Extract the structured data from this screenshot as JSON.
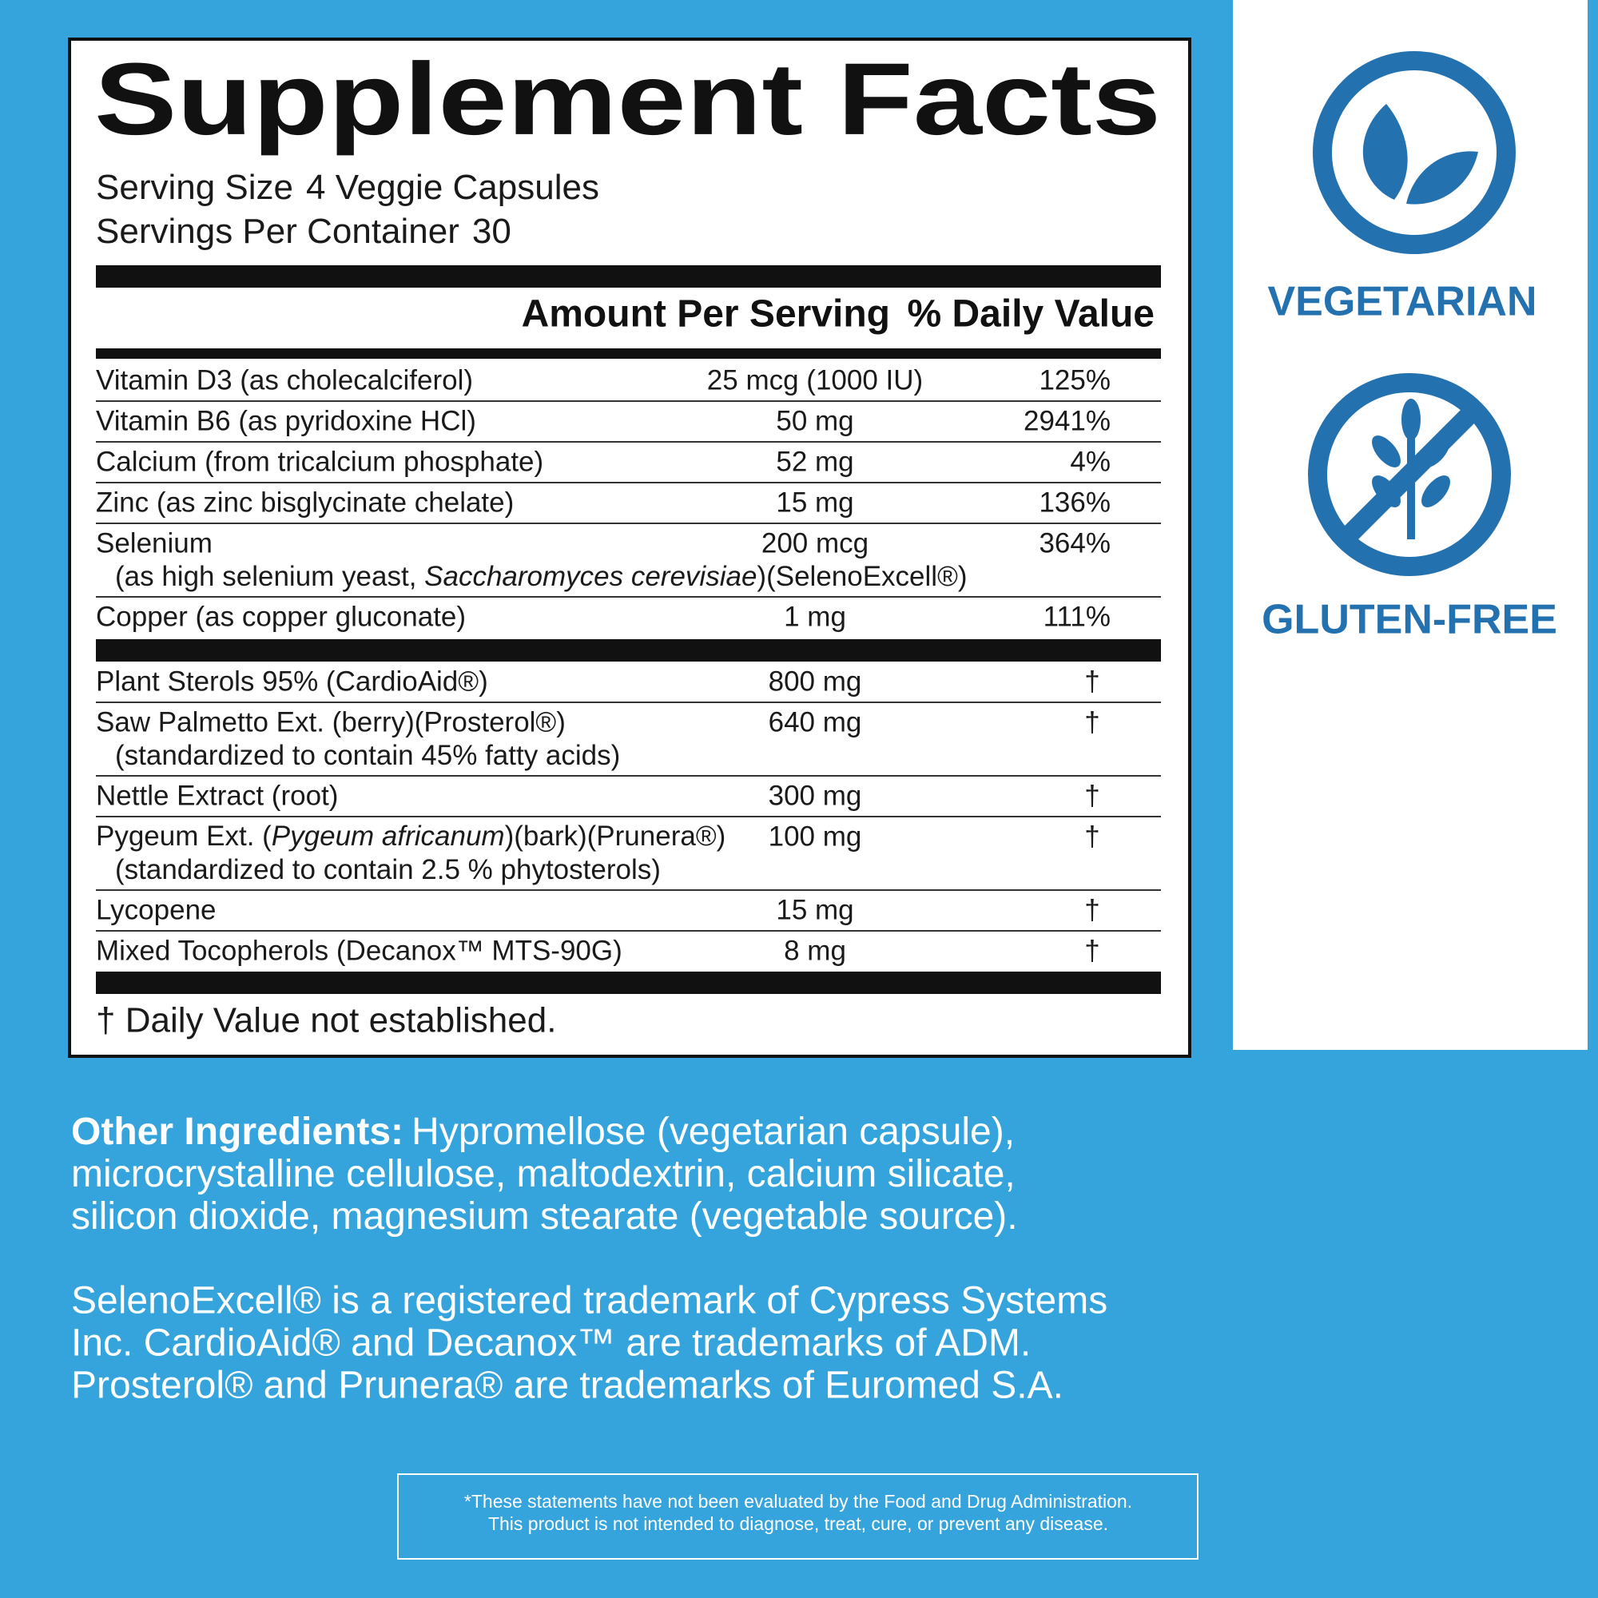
{
  "facts": {
    "title": "Supplement Facts",
    "serving_size": {
      "label": "Serving Size",
      "value": "4 Veggie Capsules"
    },
    "servings_per_container": {
      "label": "Servings Per Container",
      "value": 30
    },
    "header": {
      "amount": "Amount Per Serving",
      "daily_value": "% Daily Value"
    },
    "vitamins": [
      {
        "name": "Vitamin D3 (as cholecalciferol)",
        "amount": "25 mcg (1000 IU)",
        "dv": "125%"
      },
      {
        "name": "Vitamin B6 (as pyridoxine HCl)",
        "amount": "50 mg",
        "dv": "2941%"
      },
      {
        "name": "Calcium (from tricalcium phosphate)",
        "amount": "52 mg",
        "dv": "4%"
      },
      {
        "name": "Zinc (as zinc bisglycinate chelate)",
        "amount": "15 mg",
        "dv": "136%"
      },
      {
        "name": "Selenium",
        "sub": [
          "(as high selenium yeast, ",
          "Saccharomyces cerevisiae",
          ")(SelenoExcell®)"
        ],
        "amount": "200 mcg",
        "dv": "364%"
      },
      {
        "name": "Copper (as copper gluconate)",
        "amount": "1 mg",
        "dv": "111%"
      }
    ],
    "others": [
      {
        "name": "Plant Sterols 95% (CardioAid®)",
        "amount": "800 mg",
        "dv": "†"
      },
      {
        "name": "Saw Palmetto Ext. (berry)(Prosterol®)",
        "sub": [
          "(standardized to contain 45% fatty acids)"
        ],
        "amount": "640 mg",
        "dv": "†"
      },
      {
        "name": "Nettle Extract (root)",
        "amount": "300 mg",
        "dv": "†"
      },
      {
        "name": [
          "Pygeum Ext. (",
          "Pygeum africanum",
          ")(bark)(Prunera®)"
        ],
        "sub": [
          "(standardized to contain 2.5 % phytosterols)"
        ],
        "amount": "100 mg",
        "dv": "†"
      },
      {
        "name": "Lycopene",
        "amount": "15 mg",
        "dv": "†"
      },
      {
        "name": "Mixed Tocopherols (Decanox™ MTS-90G)",
        "amount": "8 mg",
        "dv": "†"
      }
    ],
    "footnote": "† Daily Value not established."
  },
  "badges": [
    "VEGETARIAN",
    "GLUTEN-FREE"
  ],
  "other_ingredients": {
    "label": "Other Ingredients:",
    "lines": [
      "Hypromellose (vegetarian capsule),",
      "microcrystalline cellulose, maltodextrin, calcium silicate,",
      "silicon dioxide, magnesium stearate (vegetable source)."
    ]
  },
  "trademarks": [
    "SelenoExcell® is a registered trademark of Cypress Systems",
    "Inc. CardioAid® and Decanox™ are trademarks of ADM.",
    "Prosterol® and Prunera® are trademarks of Euromed S.A."
  ],
  "disclaimer": [
    "*These statements have not been evaluated by the Food and Drug Administration.",
    "This product is not intended to diagnose, treat, cure, or prevent any disease."
  ]
}
